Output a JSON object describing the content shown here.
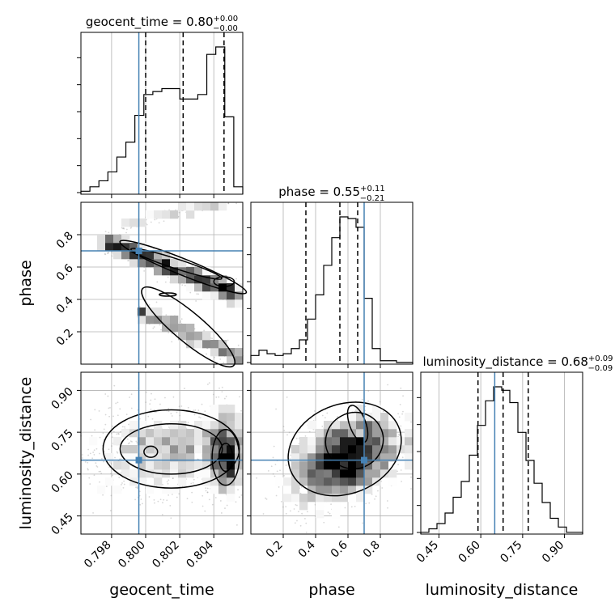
{
  "figure": {
    "colors": {
      "truth": "#4682b4",
      "hist": "#000000",
      "grid": "#b0b0b0",
      "points": "#8c8c8c"
    }
  },
  "chart_data": {
    "type": "corner",
    "parameters": [
      "geocent_time",
      "phase",
      "luminosity_distance"
    ],
    "truths": {
      "geocent_time": 0.7996,
      "phase": 0.7,
      "luminosity_distance": 0.65
    },
    "ranges": {
      "geocent_time": [
        0.7962,
        0.8057
      ],
      "phase": [
        0.0,
        1.0
      ],
      "luminosity_distance": [
        0.385,
        0.965
      ]
    },
    "ticks": {
      "geocent_time": [
        0.798,
        0.8,
        0.802,
        0.804
      ],
      "phase": [
        0.2,
        0.4,
        0.6,
        0.8
      ],
      "luminosity_distance": [
        0.45,
        0.6,
        0.75,
        0.9
      ]
    },
    "tick_labels": {
      "geocent_time": [
        "0.798",
        "0.800",
        "0.802",
        "0.804"
      ],
      "phase": [
        "0.2",
        "0.4",
        "0.6",
        "0.8"
      ],
      "luminosity_distance": [
        "0.45",
        "0.60",
        "0.75",
        "0.90"
      ]
    },
    "axis_labels": {
      "geocent_time": "geocent_time",
      "phase": "phase",
      "luminosity_distance": "luminosity_distance"
    },
    "titles": {
      "geocent_time": {
        "label": "geocent_time = 0.80",
        "plus": "+0.00",
        "minus": "−0.00"
      },
      "phase": {
        "label": "phase = 0.55",
        "plus": "+0.11",
        "minus": "−0.21"
      },
      "luminosity_distance": {
        "label": "luminosity_distance = 0.68",
        "plus": "+0.09",
        "minus": "−0.09"
      }
    },
    "quantiles": {
      "geocent_time": [
        0.8,
        0.8022,
        0.8046
      ],
      "phase": [
        0.34,
        0.55,
        0.66
      ],
      "luminosity_distance": [
        0.59,
        0.68,
        0.77
      ]
    },
    "histograms": {
      "geocent_time": [
        0.02,
        0.05,
        0.09,
        0.15,
        0.25,
        0.35,
        0.53,
        0.67,
        0.69,
        0.71,
        0.71,
        0.64,
        0.64,
        0.67,
        0.94,
        0.99,
        0.52,
        0.05
      ],
      "phase": [
        0.05,
        0.08,
        0.06,
        0.05,
        0.06,
        0.09,
        0.14,
        0.26,
        0.4,
        0.57,
        0.73,
        0.85,
        0.84,
        0.79,
        0.38,
        0.09,
        0.02,
        0.02,
        0.01,
        0.01
      ],
      "luminosity_distance": [
        0.01,
        0.03,
        0.06,
        0.12,
        0.21,
        0.3,
        0.45,
        0.62,
        0.76,
        0.84,
        0.82,
        0.75,
        0.58,
        0.42,
        0.29,
        0.18,
        0.09,
        0.04,
        0.01,
        0.01
      ]
    },
    "grid": true
  }
}
